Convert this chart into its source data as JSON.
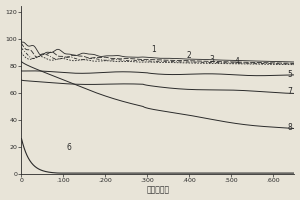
{
  "title": "",
  "xlabel": "时间，小时",
  "ylabel": "",
  "xlim": [
    0,
    650
  ],
  "ylim": [
    0,
    125
  ],
  "yticks": [
    0,
    20,
    40,
    60,
    80,
    100,
    120
  ],
  "xticks": [
    0,
    100,
    200,
    300,
    400,
    500,
    600
  ],
  "xtick_labels": [
    "0",
    ".100",
    ".200",
    ".300",
    ".400",
    ".500",
    ".600"
  ],
  "bg_color": "#e8e4d8",
  "line_color": "#2a2a2a",
  "curve_labels": {
    "1": [
      310,
      92
    ],
    "2": [
      393,
      88
    ],
    "3": [
      448,
      85
    ],
    "4": [
      508,
      83
    ],
    "5": [
      634,
      74
    ],
    "6": [
      108,
      19
    ],
    "7": [
      634,
      61
    ],
    "8": [
      634,
      34
    ]
  }
}
